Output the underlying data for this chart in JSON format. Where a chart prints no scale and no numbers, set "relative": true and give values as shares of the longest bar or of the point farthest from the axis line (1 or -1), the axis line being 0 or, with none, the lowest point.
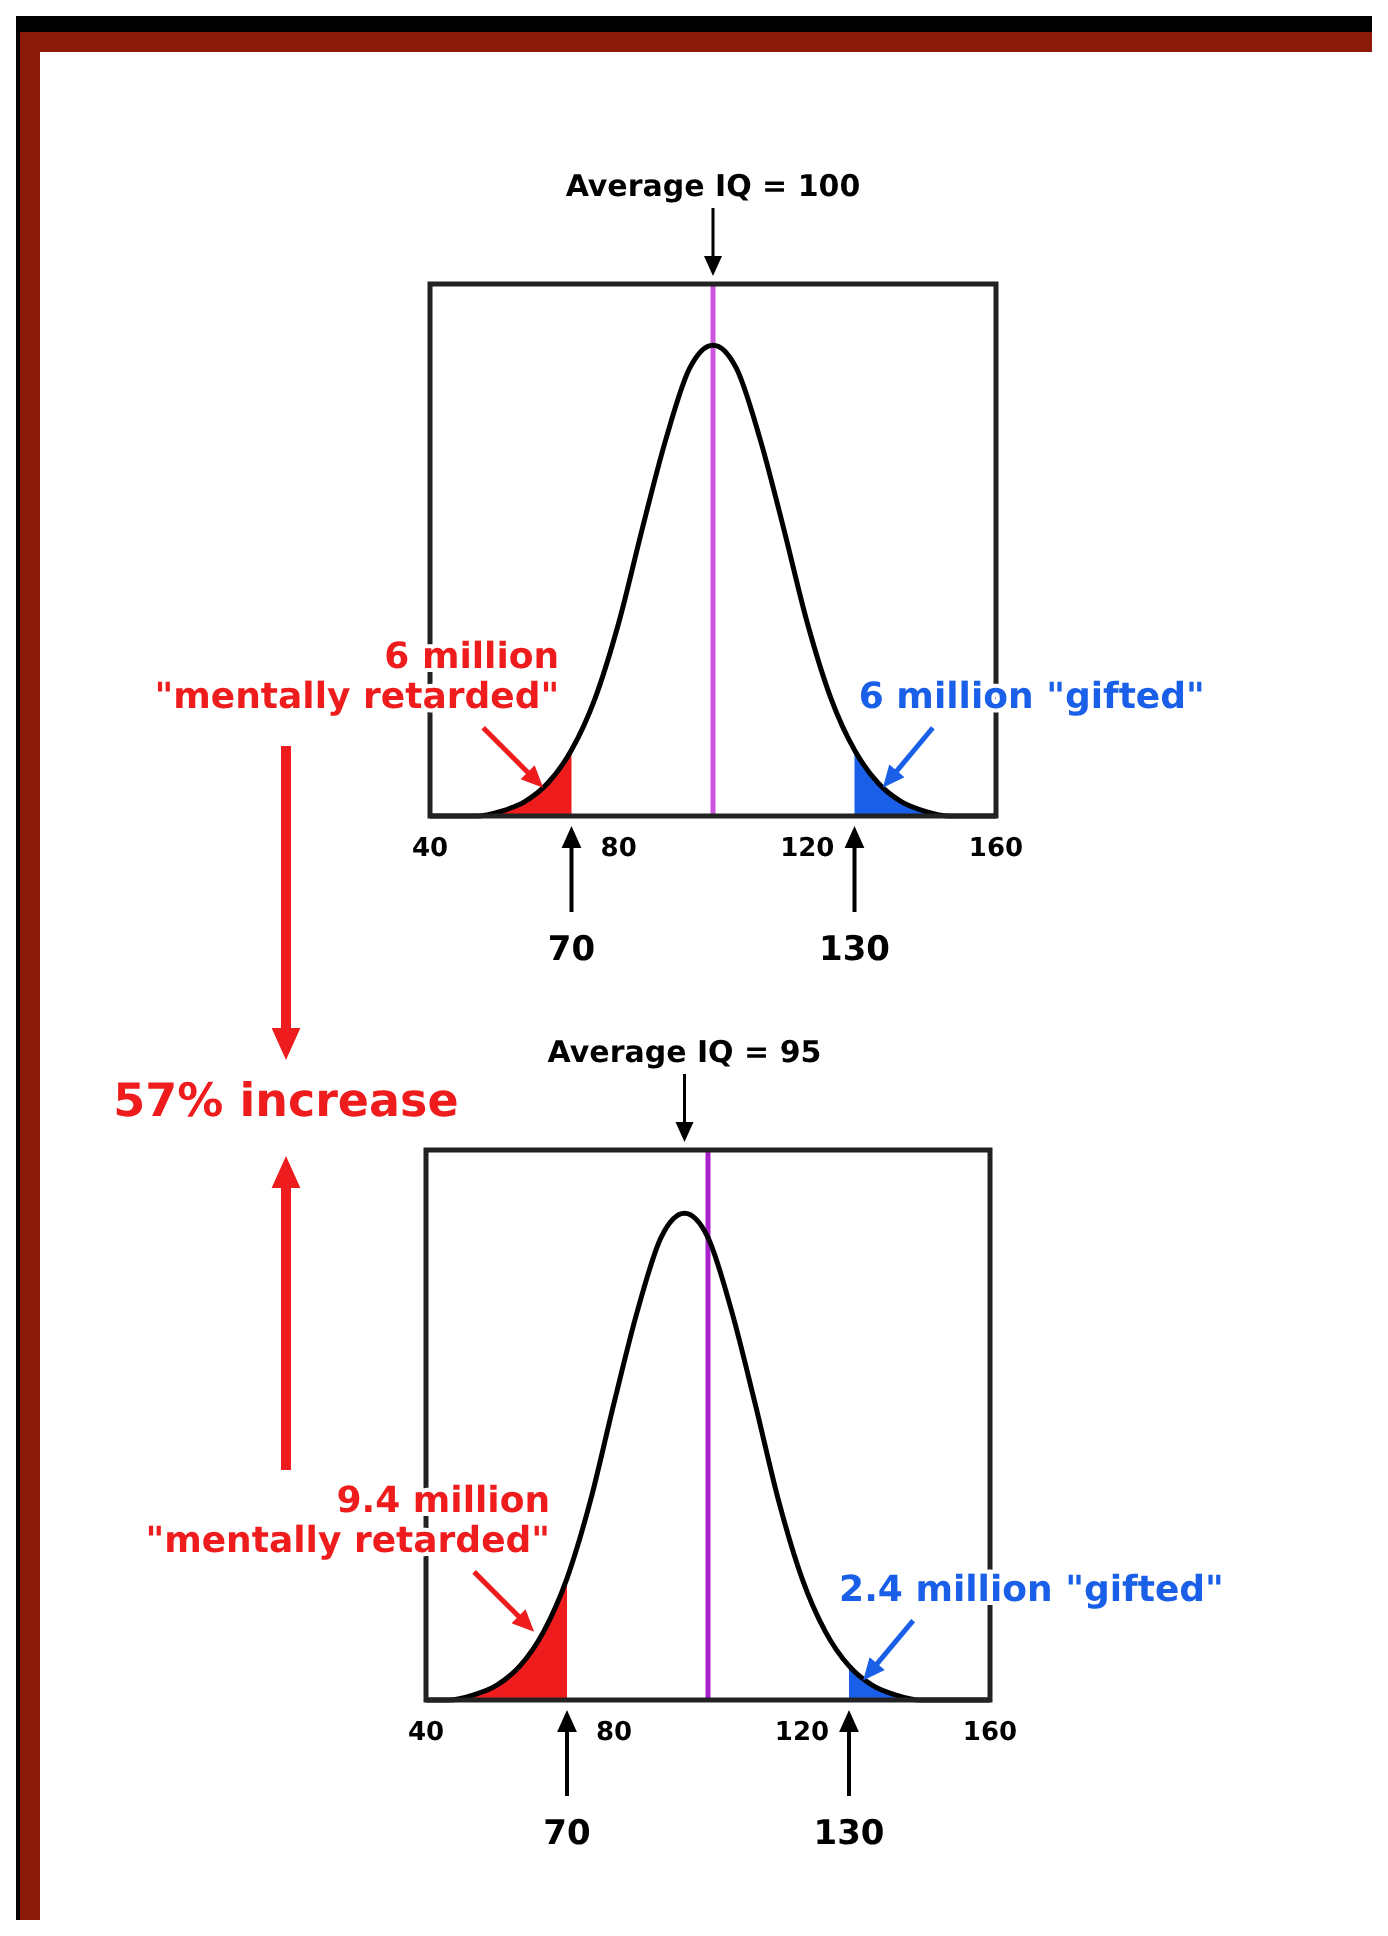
{
  "chart_data": [
    {
      "type": "line",
      "relative": true,
      "xlim": [
        40,
        160
      ],
      "xticks": [
        40,
        80,
        120,
        160
      ],
      "grid": false,
      "series": [
        {
          "type": "area",
          "color": "#ee1c1c",
          "x": [
            40,
            45,
            50,
            55,
            60,
            65,
            70
          ],
          "values": [
            0,
            0,
            0,
            0.01,
            0.03,
            0.07,
            0.14
          ]
        },
        {
          "type": "area",
          "color": "#1a5fe8",
          "x": [
            130,
            135,
            140,
            145,
            150,
            155,
            160
          ],
          "values": [
            0.14,
            0.07,
            0.03,
            0.01,
            0,
            0,
            0
          ]
        },
        {
          "type": "line",
          "color": "#000000",
          "x": [
            40,
            45,
            50,
            55,
            60,
            65,
            70,
            75,
            80,
            85,
            90,
            95,
            100,
            105,
            110,
            115,
            120,
            125,
            130,
            135,
            140,
            145,
            150,
            155,
            160
          ],
          "values": [
            0,
            0,
            0,
            0.01,
            0.03,
            0.07,
            0.14,
            0.25,
            0.41,
            0.61,
            0.8,
            0.95,
            1,
            0.95,
            0.8,
            0.61,
            0.41,
            0.25,
            0.14,
            0.07,
            0.03,
            0.01,
            0,
            0,
            0
          ]
        }
      ],
      "ref_lines": [
        {
          "axis": "x",
          "value": 100,
          "color": "#cc55dd"
        }
      ],
      "annotations": [
        "Average IQ = 100",
        "70",
        "130",
        {
          "text": "6 million\n\"mentally retarded\"",
          "x": 64,
          "y": 0.06
        },
        {
          "text": "6 million \"gifted\"",
          "x": 136,
          "y": 0.06
        },
        "57% increase"
      ]
    },
    {
      "type": "line",
      "relative": true,
      "xlim": [
        40,
        160
      ],
      "xticks": [
        40,
        80,
        120,
        160
      ],
      "grid": false,
      "series": [
        {
          "type": "area",
          "color": "#ee1c1c",
          "x": [
            40,
            45,
            50,
            55,
            60,
            65,
            70
          ],
          "values": [
            0,
            0,
            0.01,
            0.03,
            0.07,
            0.14,
            0.25
          ]
        },
        {
          "type": "area",
          "color": "#1a5fe8",
          "x": [
            130,
            135,
            140,
            145,
            150,
            155,
            160
          ],
          "values": [
            0.07,
            0.03,
            0.01,
            0,
            0,
            0,
            0
          ]
        },
        {
          "type": "line",
          "color": "#000000",
          "x": [
            40,
            45,
            50,
            55,
            60,
            65,
            70,
            75,
            80,
            85,
            90,
            95,
            100,
            105,
            110,
            115,
            120,
            125,
            130,
            135,
            140,
            145,
            150,
            155,
            160
          ],
          "values": [
            0,
            0,
            0.01,
            0.03,
            0.07,
            0.14,
            0.25,
            0.41,
            0.61,
            0.8,
            0.95,
            1,
            0.95,
            0.8,
            0.61,
            0.41,
            0.25,
            0.14,
            0.07,
            0.03,
            0.01,
            0,
            0,
            0,
            0
          ]
        }
      ],
      "ref_lines": [
        {
          "axis": "x",
          "value": 100,
          "color": "#aa22cc"
        }
      ],
      "annotations": [
        "Average IQ = 95",
        "70",
        "130",
        {
          "text": "9.4 million\n\"mentally retarded\"",
          "x": 63,
          "y": 0.14
        },
        {
          "text": "2.4 million \"gifted\"",
          "x": 133,
          "y": 0.04
        }
      ]
    }
  ]
}
